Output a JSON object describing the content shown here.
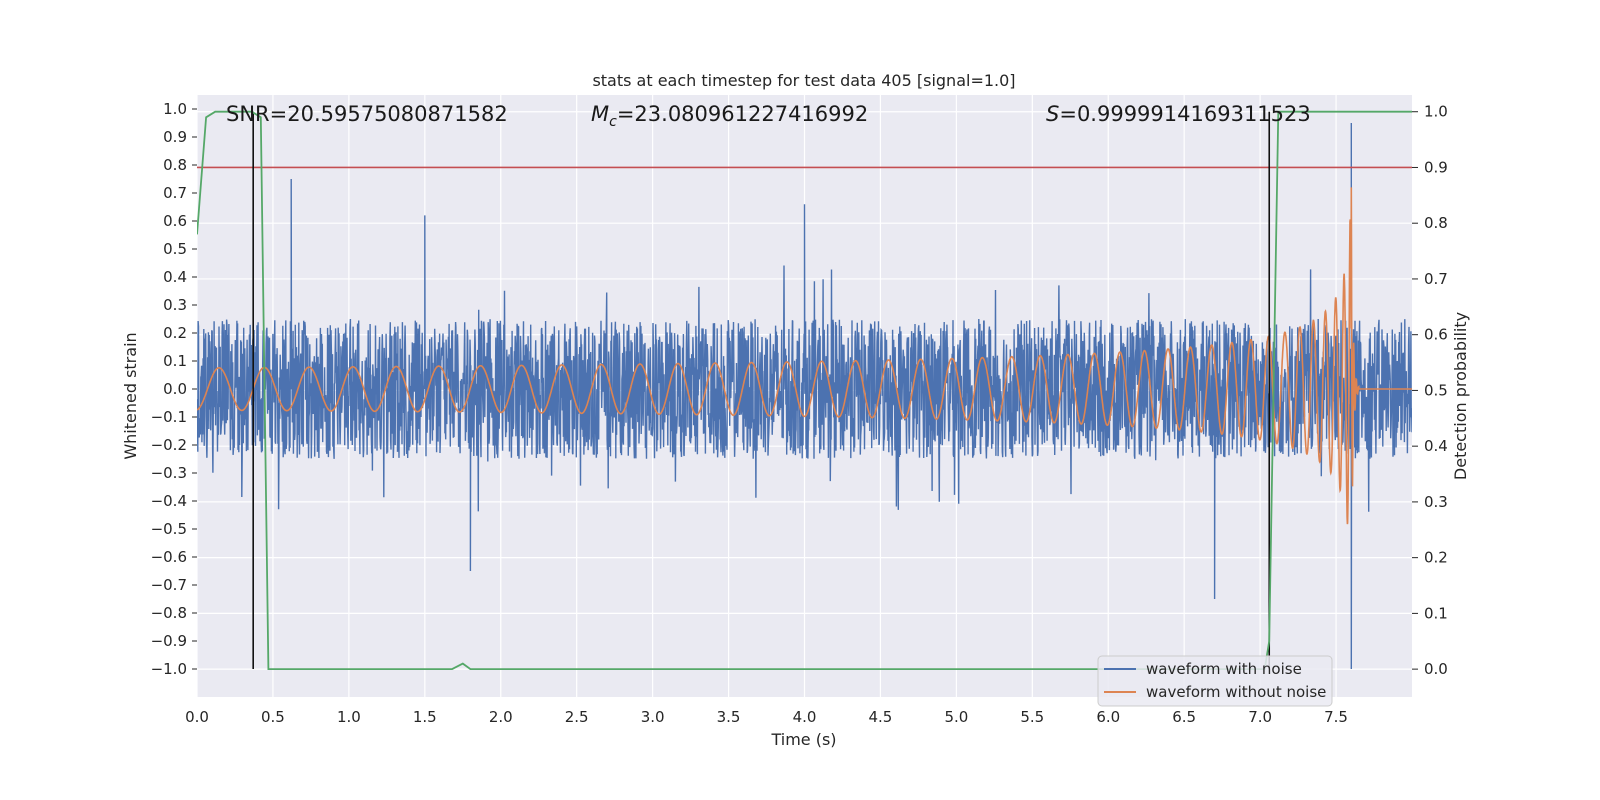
{
  "chart_data": {
    "type": "line",
    "title": "stats at each timestep for test data 405 [signal=1.0]",
    "xlabel": "Time (s)",
    "ylabel": "Whitened strain",
    "ylabel_right": "Detection probability",
    "xlim": [
      0.0,
      8.0
    ],
    "ylim": [
      -1.1,
      1.05
    ],
    "ylim_right": [
      -0.05,
      1.03
    ],
    "x_ticks": [
      "0.0",
      "0.5",
      "1.0",
      "1.5",
      "2.0",
      "2.5",
      "3.0",
      "3.5",
      "4.0",
      "4.5",
      "5.0",
      "5.5",
      "6.0",
      "6.5",
      "7.0",
      "7.5"
    ],
    "y_ticks": [
      "1.0",
      "0.9",
      "0.8",
      "0.7",
      "0.6",
      "0.5",
      "0.4",
      "0.3",
      "0.2",
      "0.1",
      "0.0",
      "−0.1",
      "−0.2",
      "−0.3",
      "−0.4",
      "−0.5",
      "−0.6",
      "−0.7",
      "−0.8",
      "−0.9",
      "−1.0"
    ],
    "y_ticks_right": [
      "1.0",
      "0.9",
      "0.8",
      "0.7",
      "0.6",
      "0.5",
      "0.4",
      "0.3",
      "0.2",
      "0.1",
      "0.0"
    ],
    "grid": true,
    "legend_position": "bottom-right",
    "annotations": {
      "snr": "SNR=20.59575080871582",
      "mc_symbol": "M",
      "mc_sub": "c",
      "mc_value": "=23.080961227416992",
      "s_symbol": "S",
      "s_value": "=0.9999914169311523"
    },
    "series": [
      {
        "name": "waveform with noise",
        "color": "#4c72b0",
        "kind": "noise",
        "amplitude": 0.25,
        "extremes": [
          [
            0.62,
            0.75
          ],
          [
            1.5,
            0.62
          ],
          [
            1.8,
            -0.65
          ],
          [
            4.0,
            0.66
          ],
          [
            6.7,
            -0.75
          ],
          [
            7.6,
            0.95
          ],
          [
            7.6,
            -1.0
          ]
        ]
      },
      {
        "name": "waveform without noise",
        "color": "#dd8452",
        "kind": "chirp",
        "merger_time": 7.6,
        "peak": 0.72
      },
      {
        "name": "detection probability",
        "color": "#55a868",
        "axis": "right",
        "x": [
          0.0,
          0.06,
          0.12,
          0.36,
          0.42,
          0.47,
          0.5,
          1.68,
          1.75,
          1.8,
          1.85,
          7.03,
          7.06,
          7.12,
          7.2,
          8.0
        ],
        "y": [
          0.78,
          0.99,
          1.0,
          1.0,
          0.99,
          0.0,
          0.0,
          0.0,
          0.01,
          0.0,
          0.0,
          0.0,
          0.05,
          1.0,
          1.0,
          1.0
        ]
      }
    ],
    "threshold": {
      "value": 0.9,
      "axis": "right",
      "color": "#c44e52"
    },
    "event_lines": [
      0.37,
      7.06
    ]
  }
}
